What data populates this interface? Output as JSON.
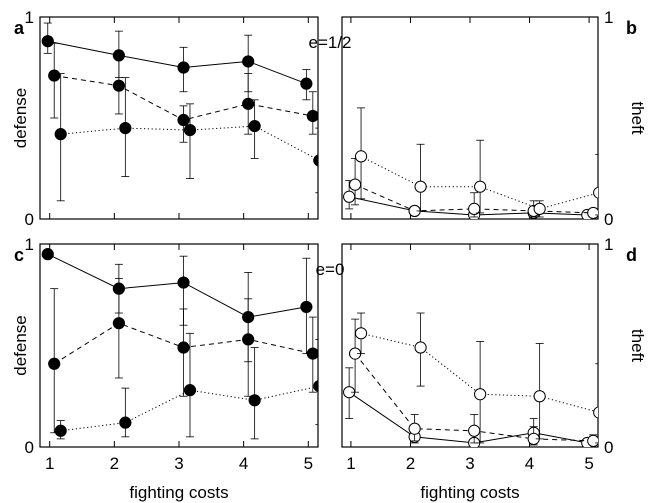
{
  "chart_data": [
    {
      "panel": "a",
      "type": "line",
      "annotation": "e=1/2",
      "xlabel": "",
      "ylabel": "defense",
      "xlim": [
        0.85,
        5.15
      ],
      "ylim": [
        0,
        1
      ],
      "x_ticks": [
        "1",
        "2",
        "3",
        "4",
        "5"
      ],
      "y_ticks": [
        "0",
        "1"
      ],
      "series": [
        {
          "style": "solid",
          "marker": "filled-circle",
          "x": [
            0.97,
            2.07,
            3.07,
            4.07,
            4.97
          ],
          "y": [
            0.88,
            0.81,
            0.75,
            0.78,
            0.67
          ],
          "err_low": [
            0.82,
            0.7,
            0.63,
            0.63,
            0.59
          ],
          "err_high": [
            0.97,
            0.93,
            0.85,
            0.91,
            0.74
          ]
        },
        {
          "style": "dashed",
          "marker": "filled-circle",
          "x": [
            1.07,
            2.07,
            3.07,
            4.07,
            5.07
          ],
          "y": [
            0.71,
            0.66,
            0.49,
            0.57,
            0.51
          ],
          "err_low": [
            0.5,
            0.52,
            0.38,
            0.42,
            0.42
          ],
          "err_high": [
            0.87,
            0.82,
            0.56,
            0.72,
            0.63
          ]
        },
        {
          "style": "dotted",
          "marker": "filled-circle",
          "x": [
            1.17,
            2.17,
            3.17,
            4.17,
            5.17
          ],
          "y": [
            0.42,
            0.45,
            0.44,
            0.46,
            0.29
          ],
          "err_low": [
            0.09,
            0.21,
            0.2,
            0.3,
            0.13
          ],
          "err_high": [
            0.72,
            0.7,
            0.57,
            0.59,
            0.45
          ]
        }
      ]
    },
    {
      "panel": "b",
      "type": "line",
      "xlabel": "",
      "ylabel": "theft",
      "xlim": [
        0.85,
        5.15
      ],
      "ylim": [
        0,
        1
      ],
      "x_ticks": [
        "1",
        "2",
        "3",
        "4",
        "5"
      ],
      "y_ticks": [
        "0",
        "1"
      ],
      "series": [
        {
          "style": "solid",
          "marker": "open-circle",
          "x": [
            0.97,
            2.07,
            3.07,
            4.07,
            4.97
          ],
          "y": [
            0.11,
            0.04,
            0.02,
            0.03,
            0.02
          ],
          "err_low": [
            0.05,
            0.02,
            0.01,
            0.01,
            0.01
          ],
          "err_high": [
            0.19,
            0.06,
            0.04,
            0.05,
            0.03
          ]
        },
        {
          "style": "dashed",
          "marker": "open-circle",
          "x": [
            1.07,
            2.07,
            3.07,
            4.07,
            5.07
          ],
          "y": [
            0.17,
            0.04,
            0.05,
            0.04,
            0.03
          ],
          "err_low": [
            0.07,
            0.02,
            0.01,
            0.01,
            0.01
          ],
          "err_high": [
            0.3,
            0.06,
            0.13,
            0.09,
            0.04
          ]
        },
        {
          "style": "dotted",
          "marker": "open-circle",
          "x": [
            1.17,
            2.17,
            3.17,
            4.17,
            5.17
          ],
          "y": [
            0.31,
            0.16,
            0.16,
            0.05,
            0.13
          ],
          "err_low": [
            0.1,
            0.04,
            0.03,
            0.01,
            0.02
          ],
          "err_high": [
            0.55,
            0.37,
            0.39,
            0.09,
            0.32
          ]
        }
      ]
    },
    {
      "panel": "c",
      "type": "line",
      "annotation": "e=0",
      "xlabel": "fighting costs",
      "ylabel": "defense",
      "xlim": [
        0.85,
        5.15
      ],
      "ylim": [
        0,
        1
      ],
      "x_ticks": [
        "1",
        "2",
        "3",
        "4",
        "5"
      ],
      "y_ticks": [
        "0",
        "1"
      ],
      "series": [
        {
          "style": "solid",
          "marker": "filled-circle",
          "x": [
            0.97,
            2.07,
            3.07,
            4.07,
            4.97
          ],
          "y": [
            0.95,
            0.78,
            0.81,
            0.64,
            0.69
          ],
          "err_low": [
            0.94,
            0.66,
            0.6,
            0.42,
            0.46
          ],
          "err_high": [
            0.97,
            0.9,
            0.94,
            0.86,
            0.93
          ]
        },
        {
          "style": "dashed",
          "marker": "filled-circle",
          "x": [
            1.07,
            2.07,
            3.07,
            4.07,
            5.07
          ],
          "y": [
            0.41,
            0.61,
            0.49,
            0.53,
            0.46
          ],
          "err_low": [
            0.07,
            0.34,
            0.25,
            0.25,
            0.27
          ],
          "err_high": [
            0.78,
            0.83,
            0.68,
            0.73,
            0.64
          ]
        },
        {
          "style": "dotted",
          "marker": "filled-circle",
          "x": [
            1.17,
            2.17,
            3.17,
            4.17,
            5.17
          ],
          "y": [
            0.08,
            0.12,
            0.28,
            0.23,
            0.3
          ],
          "err_low": [
            0.04,
            0.05,
            0.05,
            0.04,
            0.11
          ],
          "err_high": [
            0.13,
            0.29,
            0.56,
            0.49,
            0.53
          ]
        }
      ]
    },
    {
      "panel": "d",
      "type": "line",
      "xlabel": "fighting costs",
      "ylabel": "theft",
      "xlim": [
        0.85,
        5.15
      ],
      "ylim": [
        0,
        1
      ],
      "x_ticks": [
        "1",
        "2",
        "3",
        "4",
        "5"
      ],
      "y_ticks": [
        "0",
        "1"
      ],
      "series": [
        {
          "style": "solid",
          "marker": "open-circle",
          "x": [
            0.97,
            2.07,
            3.07,
            4.07,
            4.97
          ],
          "y": [
            0.27,
            0.05,
            0.02,
            0.07,
            0.02
          ],
          "err_low": [
            0.14,
            0.02,
            0.01,
            0.03,
            0.01
          ],
          "err_high": [
            0.39,
            0.09,
            0.04,
            0.14,
            0.04
          ]
        },
        {
          "style": "dashed",
          "marker": "open-circle",
          "x": [
            1.07,
            2.07,
            3.07,
            4.07,
            5.07
          ],
          "y": [
            0.46,
            0.09,
            0.08,
            0.04,
            0.03
          ],
          "err_low": [
            0.27,
            0.03,
            0.02,
            0.01,
            0.01
          ],
          "err_high": [
            0.63,
            0.16,
            0.16,
            0.1,
            0.06
          ]
        },
        {
          "style": "dotted",
          "marker": "open-circle",
          "x": [
            1.17,
            2.17,
            3.17,
            4.17,
            5.17
          ],
          "y": [
            0.56,
            0.49,
            0.26,
            0.25,
            0.17
          ],
          "err_low": [
            0.46,
            0.3,
            0.02,
            0.04,
            0.02
          ],
          "err_high": [
            0.66,
            0.66,
            0.52,
            0.51,
            0.41
          ]
        }
      ]
    }
  ]
}
